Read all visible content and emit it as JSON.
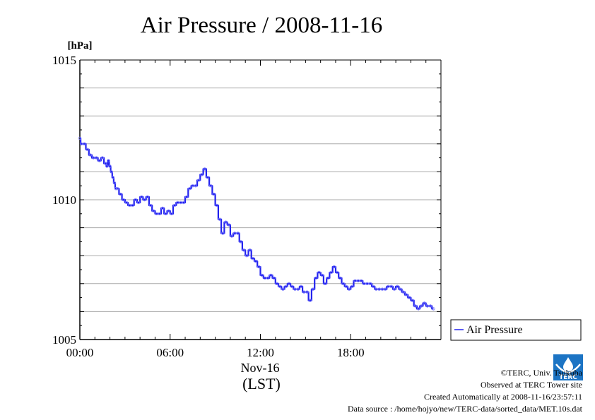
{
  "chart_data": {
    "type": "line",
    "title": "Air Pressure / 2008-11-16",
    "ylabel": "[hPa]",
    "ylim": [
      1005,
      1015
    ],
    "y_tick_labels": [
      "1015",
      "1010",
      "1005"
    ],
    "y_ticks": [
      1015,
      1010,
      1005
    ],
    "y_gridlines": [
      1006,
      1007,
      1008,
      1009,
      1010,
      1011,
      1012,
      1013,
      1014
    ],
    "xlim": [
      0,
      24
    ],
    "x_ticks": [
      0,
      6,
      12,
      18
    ],
    "x_tick_labels": [
      "00:00",
      "06:00",
      "12:00",
      "18:00"
    ],
    "x_sublabel": "Nov-16",
    "xlabel": "(LST)",
    "grid": true,
    "legend_position": "bottom-right outside",
    "series": [
      {
        "name": "Air Pressure",
        "color": "#2222ee",
        "points": [
          [
            0.0,
            1012.2
          ],
          [
            0.1,
            1012.0
          ],
          [
            0.3,
            1012.0
          ],
          [
            0.5,
            1011.8
          ],
          [
            0.7,
            1011.6
          ],
          [
            0.9,
            1011.5
          ],
          [
            1.1,
            1011.5
          ],
          [
            1.3,
            1011.4
          ],
          [
            1.5,
            1011.5
          ],
          [
            1.7,
            1011.3
          ],
          [
            1.8,
            1011.2
          ],
          [
            1.9,
            1011.4
          ],
          [
            2.0,
            1011.2
          ],
          [
            2.1,
            1011.0
          ],
          [
            2.2,
            1010.8
          ],
          [
            2.3,
            1010.6
          ],
          [
            2.4,
            1010.4
          ],
          [
            2.5,
            1010.4
          ],
          [
            2.7,
            1010.2
          ],
          [
            2.9,
            1010.0
          ],
          [
            3.1,
            1009.9
          ],
          [
            3.3,
            1009.8
          ],
          [
            3.5,
            1009.8
          ],
          [
            3.7,
            1010.0
          ],
          [
            3.9,
            1009.9
          ],
          [
            4.1,
            1010.1
          ],
          [
            4.3,
            1010.0
          ],
          [
            4.5,
            1010.1
          ],
          [
            4.7,
            1009.8
          ],
          [
            4.9,
            1009.6
          ],
          [
            5.1,
            1009.5
          ],
          [
            5.3,
            1009.5
          ],
          [
            5.5,
            1009.7
          ],
          [
            5.7,
            1009.5
          ],
          [
            5.9,
            1009.6
          ],
          [
            6.1,
            1009.5
          ],
          [
            6.3,
            1009.8
          ],
          [
            6.5,
            1009.9
          ],
          [
            6.7,
            1009.9
          ],
          [
            6.9,
            1009.9
          ],
          [
            7.1,
            1010.1
          ],
          [
            7.3,
            1010.4
          ],
          [
            7.5,
            1010.5
          ],
          [
            7.7,
            1010.5
          ],
          [
            7.9,
            1010.7
          ],
          [
            8.1,
            1010.9
          ],
          [
            8.3,
            1011.1
          ],
          [
            8.5,
            1010.8
          ],
          [
            8.7,
            1010.5
          ],
          [
            8.9,
            1010.2
          ],
          [
            9.1,
            1009.8
          ],
          [
            9.3,
            1009.3
          ],
          [
            9.5,
            1008.8
          ],
          [
            9.7,
            1009.2
          ],
          [
            9.9,
            1009.1
          ],
          [
            10.1,
            1008.7
          ],
          [
            10.3,
            1008.8
          ],
          [
            10.5,
            1008.8
          ],
          [
            10.7,
            1008.5
          ],
          [
            10.9,
            1008.2
          ],
          [
            11.1,
            1008.0
          ],
          [
            11.3,
            1008.2
          ],
          [
            11.5,
            1007.9
          ],
          [
            11.7,
            1007.8
          ],
          [
            11.9,
            1007.6
          ],
          [
            12.1,
            1007.3
          ],
          [
            12.3,
            1007.2
          ],
          [
            12.5,
            1007.2
          ],
          [
            12.7,
            1007.3
          ],
          [
            12.9,
            1007.2
          ],
          [
            13.1,
            1007.0
          ],
          [
            13.3,
            1006.9
          ],
          [
            13.5,
            1006.8
          ],
          [
            13.7,
            1006.9
          ],
          [
            13.9,
            1007.0
          ],
          [
            14.1,
            1006.9
          ],
          [
            14.3,
            1006.8
          ],
          [
            14.5,
            1006.8
          ],
          [
            14.7,
            1006.9
          ],
          [
            14.9,
            1006.7
          ],
          [
            15.1,
            1006.7
          ],
          [
            15.3,
            1006.4
          ],
          [
            15.5,
            1006.8
          ],
          [
            15.7,
            1007.2
          ],
          [
            15.9,
            1007.4
          ],
          [
            16.1,
            1007.3
          ],
          [
            16.3,
            1007.0
          ],
          [
            16.5,
            1007.2
          ],
          [
            16.7,
            1007.4
          ],
          [
            16.9,
            1007.6
          ],
          [
            17.1,
            1007.4
          ],
          [
            17.3,
            1007.2
          ],
          [
            17.5,
            1007.0
          ],
          [
            17.7,
            1006.9
          ],
          [
            17.9,
            1006.8
          ],
          [
            18.1,
            1006.9
          ],
          [
            18.3,
            1007.1
          ],
          [
            18.5,
            1007.1
          ],
          [
            18.7,
            1007.1
          ],
          [
            18.9,
            1007.0
          ],
          [
            19.1,
            1007.0
          ],
          [
            19.3,
            1007.0
          ],
          [
            19.5,
            1006.9
          ],
          [
            19.7,
            1006.8
          ],
          [
            19.9,
            1006.8
          ],
          [
            20.1,
            1006.8
          ],
          [
            20.3,
            1006.8
          ],
          [
            20.5,
            1006.9
          ],
          [
            20.7,
            1006.9
          ],
          [
            20.9,
            1006.8
          ],
          [
            21.1,
            1006.9
          ],
          [
            21.3,
            1006.8
          ],
          [
            21.5,
            1006.7
          ],
          [
            21.7,
            1006.6
          ],
          [
            21.9,
            1006.5
          ],
          [
            22.1,
            1006.4
          ],
          [
            22.3,
            1006.2
          ],
          [
            22.5,
            1006.1
          ],
          [
            22.7,
            1006.2
          ],
          [
            22.9,
            1006.3
          ],
          [
            23.1,
            1006.2
          ],
          [
            23.3,
            1006.2
          ],
          [
            23.5,
            1006.1
          ]
        ]
      }
    ]
  },
  "credits": {
    "copyright": "©TERC, Univ. Tsukuba",
    "observed": "Observed at TERC Tower site",
    "created": "Created Automatically at 2008-11-16/23:57:11",
    "source": "Data source : /home/hojyo/new/TERC-data/sorted_data/MET.10s.dat",
    "logo_text": "TERC",
    "logo_color": "#1c74c4"
  }
}
